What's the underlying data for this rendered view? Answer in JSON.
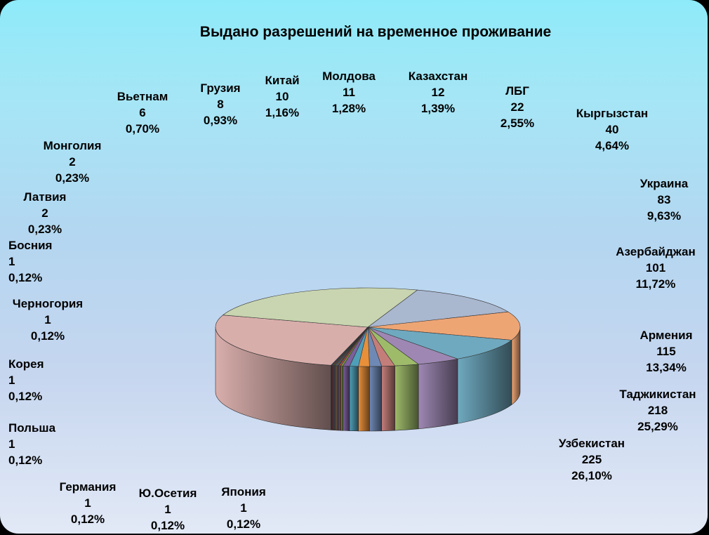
{
  "chart_data": {
    "type": "pie",
    "title": "Выдано разрешений на временное проживание",
    "slices": [
      {
        "name": "Узбекистан",
        "value": 225,
        "percent": "26,10%",
        "color": "#d8aeab"
      },
      {
        "name": "Таджикистан",
        "value": 218,
        "percent": "25,29%",
        "color": "#c8d5b0"
      },
      {
        "name": "Армения",
        "value": 115,
        "percent": "13,34%",
        "color": "#a9b7cf"
      },
      {
        "name": "Азербайджан",
        "value": 101,
        "percent": "11,72%",
        "color": "#eea574"
      },
      {
        "name": "Украина",
        "value": 83,
        "percent": "9,63%",
        "color": "#6fa9bf"
      },
      {
        "name": "Кыргызстан",
        "value": 40,
        "percent": "4,64%",
        "color": "#9e88b3"
      },
      {
        "name": "ЛБГ",
        "value": 22,
        "percent": "2,55%",
        "color": "#9ebb6a"
      },
      {
        "name": "Казахстан",
        "value": 12,
        "percent": "1,39%",
        "color": "#c47e7a"
      },
      {
        "name": "Молдова",
        "value": 11,
        "percent": "1,28%",
        "color": "#6f89b5"
      },
      {
        "name": "Китай",
        "value": 10,
        "percent": "1,16%",
        "color": "#e88f3a"
      },
      {
        "name": "Грузия",
        "value": 8,
        "percent": "0,93%",
        "color": "#4f9fb8"
      },
      {
        "name": "Вьетнам",
        "value": 6,
        "percent": "0,70%",
        "color": "#7b5f9c"
      },
      {
        "name": "Монголия",
        "value": 2,
        "percent": "0,23%",
        "color": "#7a9a3f"
      },
      {
        "name": "Латвия",
        "value": 2,
        "percent": "0,23%",
        "color": "#a94a44"
      },
      {
        "name": "Босния",
        "value": 1,
        "percent": "0,12%",
        "color": "#3d5f96"
      },
      {
        "name": "Черногория",
        "value": 1,
        "percent": "0,12%",
        "color": "#c8712c"
      },
      {
        "name": "Корея",
        "value": 1,
        "percent": "0,12%",
        "color": "#5b8fa3"
      },
      {
        "name": "Польша",
        "value": 1,
        "percent": "0,12%",
        "color": "#5c4a7a"
      },
      {
        "name": "Германия",
        "value": 1,
        "percent": "0,12%",
        "color": "#5e7a34"
      },
      {
        "name": "Ю.Осетия",
        "value": 1,
        "percent": "0,12%",
        "color": "#8a3a35"
      },
      {
        "name": "Япония",
        "value": 1,
        "percent": "0,12%",
        "color": "#2f4a78"
      }
    ]
  }
}
